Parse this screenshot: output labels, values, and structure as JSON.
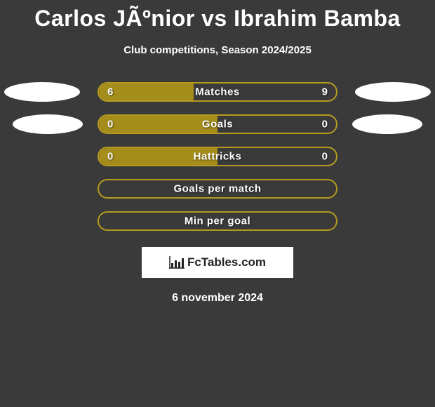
{
  "title": "Carlos JÃºnior vs Ibrahim Bamba",
  "subtitle": "Club competitions, Season 2024/2025",
  "accent_color": "#b49a1f",
  "accent_fill": "#a58d1b",
  "ellipse_color": "#ffffff",
  "background_color": "#3a3a3a",
  "rows": [
    {
      "label": "Matches",
      "left": "6",
      "right": "9",
      "fill_pct": 40,
      "show_left_ellipse": true,
      "show_right_ellipse": true
    },
    {
      "label": "Goals",
      "left": "0",
      "right": "0",
      "fill_pct": 50,
      "show_left_ellipse": true,
      "show_right_ellipse": true
    },
    {
      "label": "Hattricks",
      "left": "0",
      "right": "0",
      "fill_pct": 50,
      "show_left_ellipse": false,
      "show_right_ellipse": false
    },
    {
      "label": "Goals per match",
      "left": "",
      "right": "",
      "fill_pct": 0,
      "show_left_ellipse": false,
      "show_right_ellipse": false
    },
    {
      "label": "Min per goal",
      "left": "",
      "right": "",
      "fill_pct": 0,
      "show_left_ellipse": false,
      "show_right_ellipse": false
    }
  ],
  "logo_text": "FcTables.com",
  "date": "6 november 2024"
}
